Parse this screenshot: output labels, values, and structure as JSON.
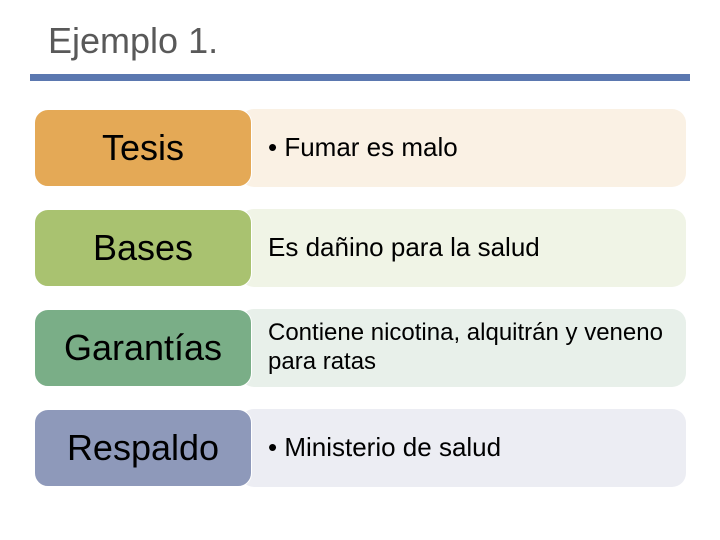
{
  "title": "Ejemplo 1.",
  "rule_color": "#5b78b0",
  "rows": [
    {
      "tag": "Tesis",
      "content": "• Fumar es malo",
      "tag_bg": "#e4a956",
      "content_bg": "#faf1e4",
      "content_font_size": 26
    },
    {
      "tag": "Bases",
      "content": "Es dañino para la salud",
      "tag_bg": "#a9c270",
      "content_bg": "#f0f4e6",
      "content_font_size": 26
    },
    {
      "tag": "Garantías",
      "content": "Contiene nicotina, alquitrán y veneno para ratas",
      "tag_bg": "#7aae87",
      "content_bg": "#e8f0ea",
      "content_font_size": 24
    },
    {
      "tag": "Respaldo",
      "content": "• Ministerio de salud",
      "tag_bg": "#8e99ba",
      "content_bg": "#ecedf3",
      "content_font_size": 26
    }
  ]
}
